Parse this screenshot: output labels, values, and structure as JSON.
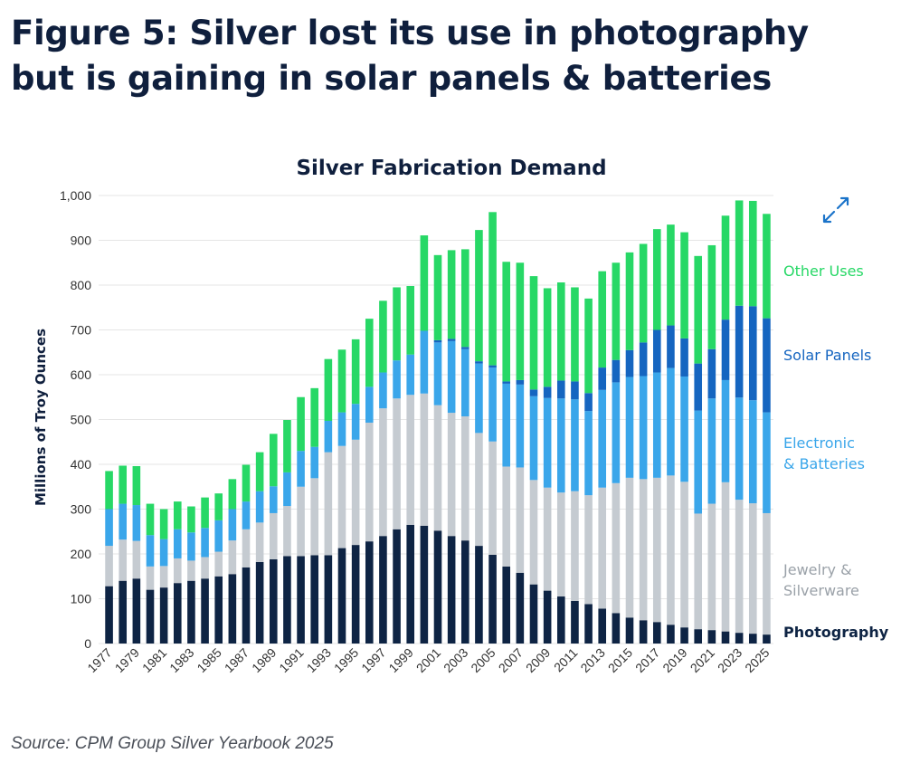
{
  "headline": "Figure 5: Silver lost its use in photography but is gaining in solar panels & batteries",
  "source": "Source: CPM Group Silver Yearbook 2025",
  "colors": {
    "photography": "#0e2444",
    "jewelry": "#c5cbd1",
    "electronic": "#3aa6ea",
    "solar": "#1565c0",
    "other": "#27d866",
    "gridline": "#e6e6e6",
    "expand_icon": "#1a73c9"
  },
  "chart_data": {
    "type": "bar",
    "stacked": true,
    "title": "Silver Fabrication Demand",
    "xlabel": "",
    "ylabel": "Millions of Troy Ounces",
    "ylim": [
      0,
      1000
    ],
    "yticks": [
      0,
      100,
      200,
      300,
      400,
      500,
      600,
      700,
      800,
      900,
      1000
    ],
    "ytick_labels": [
      "0",
      "100",
      "200",
      "300",
      "400",
      "500",
      "600",
      "700",
      "800",
      "900",
      "1,000"
    ],
    "categories": [
      "1977",
      "1978",
      "1979",
      "1980",
      "1981",
      "1982",
      "1983",
      "1984",
      "1985",
      "1986",
      "1987",
      "1988",
      "1989",
      "1990",
      "1991",
      "1992",
      "1993",
      "1994",
      "1995",
      "1996",
      "1997",
      "1998",
      "1999",
      "2000",
      "2001",
      "2002",
      "2003",
      "2004",
      "2005",
      "2006",
      "2007",
      "2008",
      "2009",
      "2010",
      "2011",
      "2012",
      "2013",
      "2014",
      "2015",
      "2016",
      "2017",
      "2018",
      "2019",
      "2020",
      "2021",
      "2022",
      "2023",
      "2024",
      "2025"
    ],
    "xtick_labels": [
      "1977",
      "1979",
      "1981",
      "1983",
      "1985",
      "1987",
      "1989",
      "1991",
      "1993",
      "1995",
      "1997",
      "1999",
      "2001",
      "2003",
      "2005",
      "2007",
      "2009",
      "2011",
      "2013",
      "2015",
      "2017",
      "2019",
      "2021",
      "2023",
      "2025"
    ],
    "series": [
      {
        "name": "Photography",
        "color_key": "photography",
        "values": [
          128,
          140,
          145,
          120,
          125,
          135,
          140,
          145,
          150,
          155,
          170,
          182,
          188,
          195,
          195,
          197,
          197,
          213,
          220,
          228,
          240,
          255,
          265,
          263,
          252,
          240,
          230,
          218,
          198,
          172,
          158,
          132,
          118,
          105,
          95,
          88,
          78,
          68,
          58,
          52,
          48,
          42,
          36,
          32,
          30,
          27,
          24,
          22,
          20
        ]
      },
      {
        "name": "Jewelry & Silverware",
        "color_key": "jewelry",
        "values": [
          90,
          92,
          84,
          52,
          48,
          55,
          45,
          48,
          55,
          75,
          85,
          88,
          103,
          112,
          155,
          172,
          230,
          228,
          235,
          265,
          285,
          292,
          290,
          295,
          280,
          275,
          277,
          252,
          253,
          223,
          235,
          233,
          230,
          232,
          245,
          243,
          270,
          290,
          312,
          315,
          322,
          333,
          325,
          258,
          282,
          333,
          297,
          291,
          271
        ]
      },
      {
        "name": "Electronic & Batteries",
        "color_key": "electronic",
        "values": [
          82,
          80,
          80,
          70,
          60,
          65,
          63,
          65,
          70,
          70,
          62,
          70,
          60,
          75,
          80,
          70,
          70,
          75,
          80,
          80,
          80,
          85,
          90,
          140,
          140,
          160,
          150,
          155,
          165,
          185,
          185,
          187,
          200,
          210,
          205,
          188,
          218,
          225,
          225,
          230,
          235,
          240,
          235,
          230,
          235,
          228,
          228,
          230,
          225
        ]
      },
      {
        "name": "Solar Panels",
        "color_key": "solar",
        "values": [
          0,
          0,
          0,
          0,
          0,
          0,
          0,
          0,
          0,
          0,
          0,
          0,
          0,
          0,
          0,
          0,
          0,
          0,
          0,
          0,
          0,
          0,
          0,
          0,
          5,
          5,
          5,
          5,
          5,
          5,
          10,
          15,
          25,
          40,
          40,
          40,
          50,
          50,
          60,
          75,
          95,
          95,
          85,
          105,
          110,
          135,
          205,
          210,
          210
        ]
      },
      {
        "name": "Other Uses",
        "color_key": "other",
        "values": [
          85,
          85,
          87,
          70,
          67,
          62,
          58,
          68,
          60,
          67,
          82,
          87,
          117,
          117,
          120,
          131,
          138,
          140,
          144,
          152,
          160,
          163,
          153,
          213,
          190,
          198,
          218,
          293,
          342,
          267,
          262,
          253,
          220,
          219,
          210,
          211,
          215,
          217,
          218,
          220,
          225,
          225,
          237,
          240,
          232,
          232,
          235,
          235,
          233
        ]
      }
    ],
    "legend": {
      "placement": "right",
      "labels": [
        {
          "lines": [
            "Other Uses"
          ],
          "series": "Other Uses"
        },
        {
          "lines": [
            "Solar Panels"
          ],
          "series": "Solar Panels"
        },
        {
          "lines": [
            "Electronic",
            "& Batteries"
          ],
          "series": "Electronic & Batteries"
        },
        {
          "lines": [
            "Jewelry &",
            "Silverware"
          ],
          "series": "Jewelry & Silverware"
        },
        {
          "lines": [
            "Photography"
          ],
          "series": "Photography"
        }
      ]
    }
  }
}
